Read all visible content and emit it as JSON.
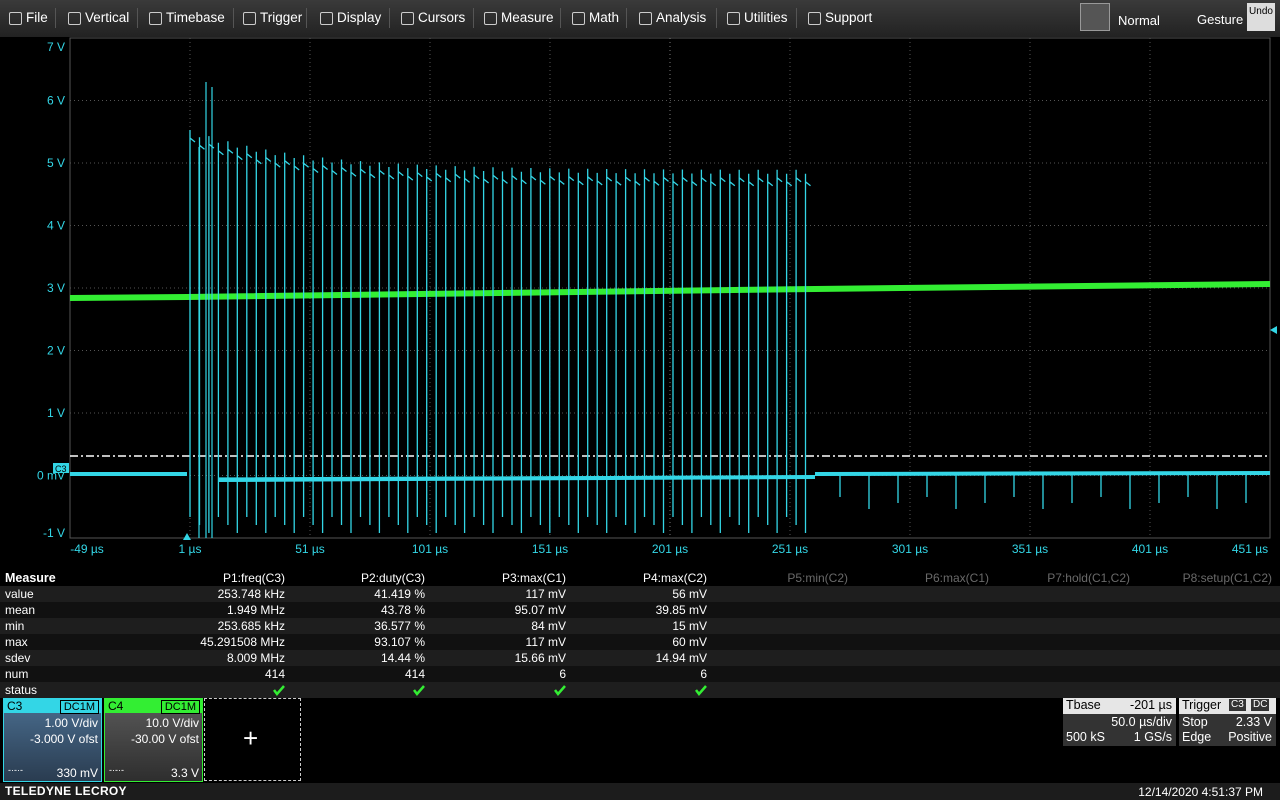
{
  "menu": {
    "items": [
      "File",
      "Vertical",
      "Timebase",
      "Trigger",
      "Display",
      "Cursors",
      "Measure",
      "Math",
      "Analysis",
      "Utilities",
      "Support"
    ],
    "mode": "Normal",
    "gesture": "Gesture",
    "undo": "Undo"
  },
  "screen": {
    "y_labels": [
      "7 V",
      "6 V",
      "5 V",
      "4 V",
      "3 V",
      "2 V",
      "1 V",
      "0 mV",
      "-1 V"
    ],
    "x_labels": [
      "-49 µs",
      "1 µs",
      "51 µs",
      "101 µs",
      "151 µs",
      "201 µs",
      "251 µs",
      "301 µs",
      "351 µs",
      "401 µs",
      "451 µs"
    ],
    "channel_marker": "C3"
  },
  "measure": {
    "title": "Measure",
    "headers": [
      "P1:freq(C3)",
      "P2:duty(C3)",
      "P3:max(C1)",
      "P4:max(C2)",
      "P5:min(C2)",
      "P6:max(C1)",
      "P7:hold(C1,C2)",
      "P8:setup(C1,C2)"
    ],
    "rows": [
      {
        "label": "value",
        "cells": [
          "253.748 kHz",
          "41.419 %",
          "117 mV",
          "56 mV"
        ]
      },
      {
        "label": "mean",
        "cells": [
          "1.949 MHz",
          "43.78 %",
          "95.07 mV",
          "39.85 mV"
        ]
      },
      {
        "label": "min",
        "cells": [
          "253.685 kHz",
          "36.577 %",
          "84 mV",
          "15 mV"
        ]
      },
      {
        "label": "max",
        "cells": [
          "45.291508 MHz",
          "93.107 %",
          "117 mV",
          "60 mV"
        ]
      },
      {
        "label": "sdev",
        "cells": [
          "8.009 MHz",
          "14.44 %",
          "15.66 mV",
          "14.94 mV"
        ]
      },
      {
        "label": "num",
        "cells": [
          "414",
          "414",
          "6",
          "6"
        ]
      }
    ],
    "status_label": "status"
  },
  "channels": [
    {
      "name": "C3",
      "coupling": "DC1M",
      "vdiv": "1.00 V/div",
      "offset": "-3.000 V ofst",
      "extra": "330 mV"
    },
    {
      "name": "C4",
      "coupling": "DC1M",
      "vdiv": "10.0 V/div",
      "offset": "-30.00 V ofst",
      "extra": "3.3 V"
    }
  ],
  "timebase": {
    "label": "Tbase",
    "delay": "-201 µs",
    "div": "50.0 µs/div",
    "samples": "500 kS",
    "rate": "1 GS/s"
  },
  "trigger": {
    "label": "Trigger",
    "channel": "C3",
    "coupling": "DC",
    "state": "Stop",
    "level": "2.33 V",
    "type": "Edge",
    "slope": "Positive"
  },
  "footer": {
    "brand": "TELEDYNE LECROY",
    "datetime": "12/14/2020 4:51:37 PM"
  }
}
